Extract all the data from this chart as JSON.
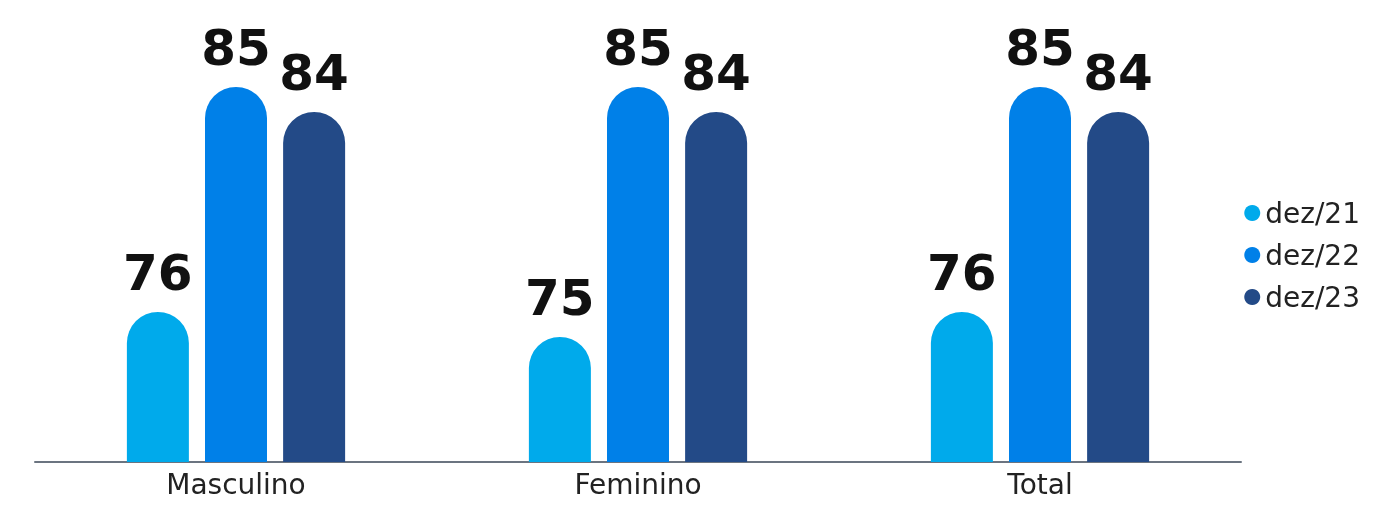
{
  "chart_data": {
    "type": "bar",
    "categories": [
      "Masculino",
      "Feminino",
      "Total"
    ],
    "series": [
      {
        "name": "dez/21",
        "color": "#00aaeb",
        "values": [
          76,
          75,
          76
        ]
      },
      {
        "name": "dez/22",
        "color": "#0080e8",
        "values": [
          85,
          85,
          85
        ]
      },
      {
        "name": "dez/23",
        "color": "#234a87",
        "values": [
          84,
          84,
          84
        ]
      }
    ],
    "ylim": [
      70,
      85
    ],
    "data_labels": true,
    "legend": "right",
    "grid": false,
    "tick_labels": "x"
  }
}
